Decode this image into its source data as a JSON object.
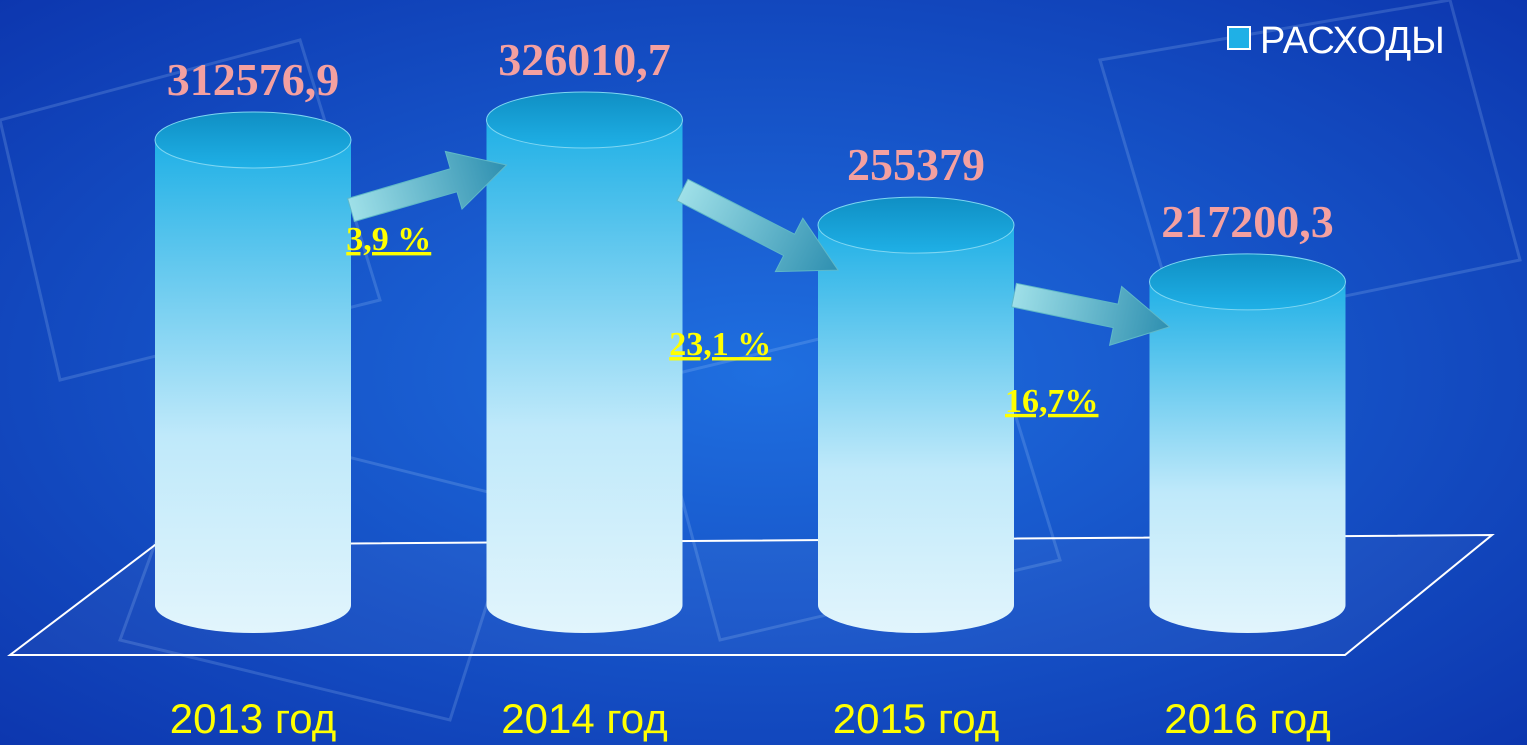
{
  "chart_data": {
    "type": "bar",
    "categories": [
      "2013 год",
      "2014 год",
      "2015 год",
      "2016 год"
    ],
    "series": [
      {
        "name": "РАСХОДЫ",
        "color": "#1fb0e6",
        "values": [
          312576.9,
          326010.7,
          255379,
          217200.3
        ],
        "value_labels": [
          "312576,9",
          "326010,7",
          "255379",
          "217200,3"
        ]
      }
    ],
    "annotations": [
      "3,9 %",
      "23,1 %",
      "16,7%"
    ],
    "legend": "top-right"
  }
}
